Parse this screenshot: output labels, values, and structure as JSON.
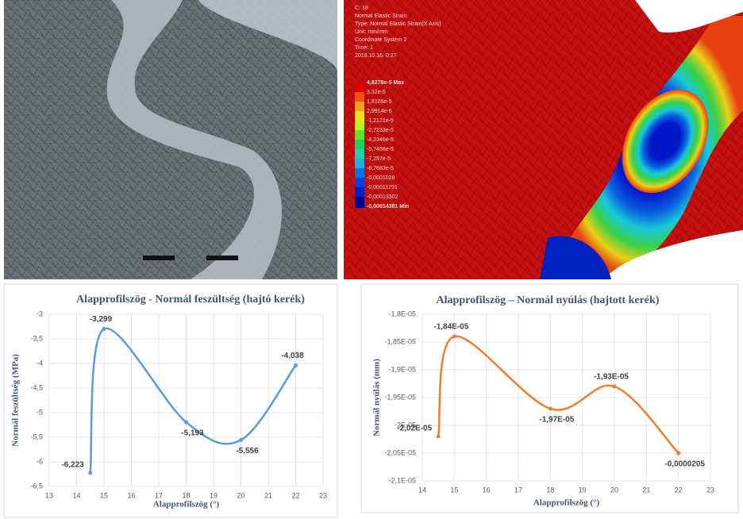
{
  "fea": {
    "header": [
      "C: 18",
      "Normal Elastic Strain",
      "Type: Normal Elastic Strain(X Axis)",
      "Unit: mm/mm",
      "Coordinate System 2",
      "Time: 1",
      "2019.10.16. 0:27"
    ],
    "legend": [
      "4,8278e-5 Max",
      "3,32e-5",
      "1,8105e-5",
      "2,9914e-6",
      "-1,2121e-5",
      "-2,7233e-5",
      "-4,2346e-5",
      "-5,7458e-5",
      "-7,257e-5",
      "-8,7683e-5",
      "-0,0001028",
      "-0,00011791",
      "-0,00013302",
      "-0,00014381 Min"
    ]
  },
  "chart_data": [
    {
      "type": "line",
      "title": "Alapprofilszög - Normál feszültség (hajtó kerék)",
      "x_label": "Alapprofilszög (°)",
      "y_label": "Normál feszültség (MPa)",
      "x": [
        14.5,
        15,
        18,
        20,
        22
      ],
      "values": [
        -6.223,
        -3.299,
        -5.193,
        -5.556,
        -4.038
      ],
      "value_labels": [
        "-6,223",
        "-3,299",
        "-5,193",
        "-5,556",
        "-4,038"
      ],
      "color": "#5b9bd5",
      "smooth": true,
      "grid": true,
      "xlim": [
        13,
        23
      ],
      "xticks": [
        13,
        14,
        15,
        16,
        17,
        18,
        19,
        20,
        21,
        22,
        23
      ],
      "ylim": [
        -6.5,
        -3
      ],
      "yticks": [
        {
          "value": -6.5,
          "label": "-6,5"
        },
        -6,
        {
          "value": -5.5,
          "label": "-5,5"
        },
        -5,
        {
          "value": -4.5,
          "label": "-4,5"
        },
        -4,
        {
          "value": -3.5,
          "label": "-3,5"
        },
        -3
      ]
    },
    {
      "type": "line",
      "title": "Alapprofilszög – Normál nyúlás (hajtott kerék)",
      "x_label": "Alapprofilszög (°)",
      "y_label": "Normál nyúlás (mm)",
      "x": [
        14.5,
        15,
        18,
        20,
        22
      ],
      "values": [
        -2.02e-05,
        -1.84e-05,
        -1.97e-05,
        -1.93e-05,
        -2.05e-05
      ],
      "value_labels": [
        "-2,02E-05",
        "-1,84E-05",
        "-1,97E-05",
        "-1,93E-05",
        "-0,0000205"
      ],
      "color": "#ed7d31",
      "smooth": true,
      "grid": true,
      "xlim": [
        14,
        23
      ],
      "xticks": [
        14,
        15,
        16,
        17,
        18,
        19,
        20,
        21,
        22,
        23
      ],
      "ylim": [
        -2.1e-05,
        -1.8e-05
      ],
      "yticks": [
        {
          "value": -2.1e-05,
          "label": "-2,1E-05"
        },
        {
          "value": -2.05e-05,
          "label": "-2,05E-05"
        },
        {
          "value": -2e-05,
          "label": "-2E-05"
        },
        {
          "value": -1.95e-05,
          "label": "-1,95E-05"
        },
        {
          "value": -1.9e-05,
          "label": "-1,9E-05"
        },
        {
          "value": -1.85e-05,
          "label": "-1,85E-05"
        },
        {
          "value": -1.8e-05,
          "label": "-1,8E-05"
        }
      ]
    }
  ]
}
